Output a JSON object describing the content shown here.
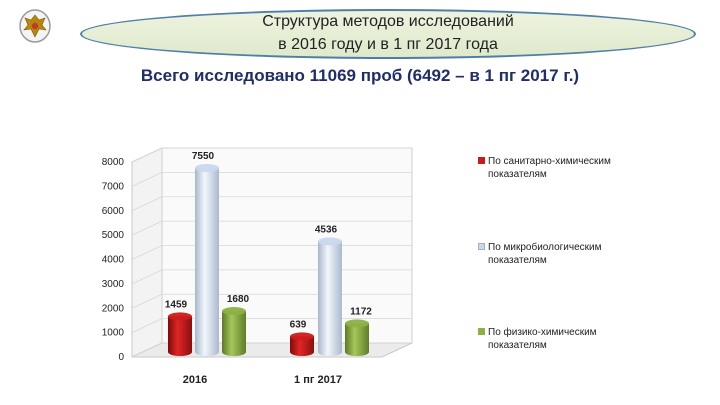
{
  "banner": {
    "line1": "Структура методов исследований",
    "line2": "в 2016 году и в 1 пг 2017 года"
  },
  "subtitle": "Всего исследовано 11069 проб (6492 – в 1 пг 2017 г.)",
  "logo": {
    "icon": "emblem-eagle-icon"
  },
  "chart_data": {
    "type": "bar",
    "categories": [
      "2016",
      "1 пг 2017"
    ],
    "series": [
      {
        "name": "По санитарно-химическим показателям",
        "values": [
          1459,
          639
        ],
        "color": "#cc1a1a"
      },
      {
        "name": "По микробиологическим показателям",
        "values": [
          7550,
          4536
        ],
        "color": "#c8d8ee"
      },
      {
        "name": "По физико-химическим показателям",
        "values": [
          1680,
          1172
        ],
        "color": "#8cb043"
      }
    ],
    "ylim": [
      0,
      8000
    ],
    "yticks": [
      "0",
      "1000",
      "2000",
      "3000",
      "4000",
      "5000",
      "6000",
      "7000",
      "8000"
    ],
    "grid": true,
    "legend": "right",
    "style": "3d-cylinder"
  }
}
